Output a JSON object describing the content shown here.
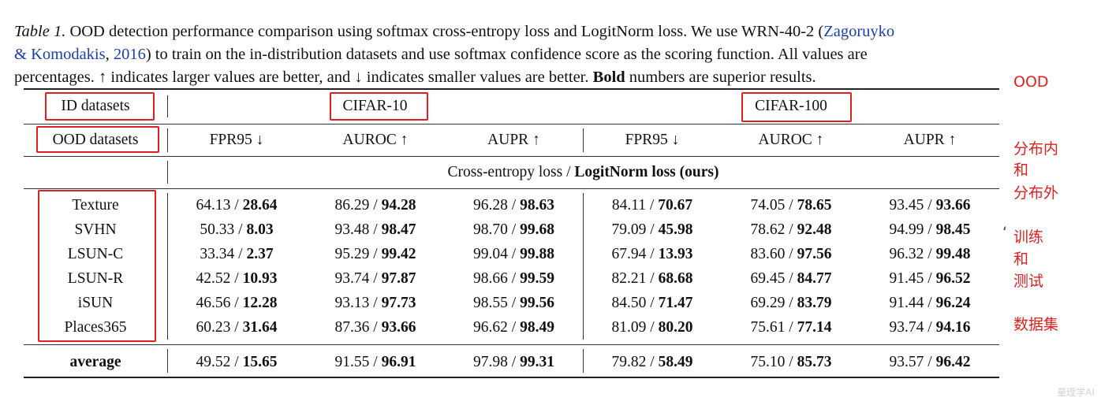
{
  "caption": {
    "label": "Table 1.",
    "line1_pre": " OOD detection performance comparison using softmax cross-entropy loss and LogitNorm loss. We use WRN-40-2 (",
    "ref_name": "Zagoruyko",
    "line2_ref": "& Komodakis",
    "line2_comma": ", ",
    "ref_year": "2016",
    "line2_post": ") to train on the in-distribution datasets and use softmax confidence score as the scoring function.  All values are",
    "line3_pre": "percentages. ↑ indicates larger values are better, and ↓ indicates smaller values are better. ",
    "line3_bold": "Bold",
    "line3_post": " numbers are superior results."
  },
  "table": {
    "id_header": "ID datasets",
    "ood_header": "OOD datasets",
    "groups": [
      "CIFAR-10",
      "CIFAR-100"
    ],
    "metrics": [
      "FPR95 ↓",
      "AUROC ↑",
      "AUPR ↑",
      "FPR95 ↓",
      "AUROC ↑",
      "AUPR ↑"
    ],
    "method_plain": "Cross-entropy loss / ",
    "method_bold": "LogitNorm loss (ours)",
    "rows": [
      {
        "name": "Texture",
        "cells": [
          [
            "64.13",
            "28.64"
          ],
          [
            "86.29",
            "94.28"
          ],
          [
            "96.28",
            "98.63"
          ],
          [
            "84.11",
            "70.67"
          ],
          [
            "74.05",
            "78.65"
          ],
          [
            "93.45",
            "93.66"
          ]
        ]
      },
      {
        "name": "SVHN",
        "cells": [
          [
            "50.33",
            "8.03"
          ],
          [
            "93.48",
            "98.47"
          ],
          [
            "98.70",
            "99.68"
          ],
          [
            "79.09",
            "45.98"
          ],
          [
            "78.62",
            "92.48"
          ],
          [
            "94.99",
            "98.45"
          ]
        ]
      },
      {
        "name": "LSUN-C",
        "cells": [
          [
            "33.34",
            "2.37"
          ],
          [
            "95.29",
            "99.42"
          ],
          [
            "99.04",
            "99.88"
          ],
          [
            "67.94",
            "13.93"
          ],
          [
            "83.60",
            "97.56"
          ],
          [
            "96.32",
            "99.48"
          ]
        ]
      },
      {
        "name": "LSUN-R",
        "cells": [
          [
            "42.52",
            "10.93"
          ],
          [
            "93.74",
            "97.87"
          ],
          [
            "98.66",
            "99.59"
          ],
          [
            "82.21",
            "68.68"
          ],
          [
            "69.45",
            "84.77"
          ],
          [
            "91.45",
            "96.52"
          ]
        ]
      },
      {
        "name": "iSUN",
        "cells": [
          [
            "46.56",
            "12.28"
          ],
          [
            "93.13",
            "97.73"
          ],
          [
            "98.55",
            "99.56"
          ],
          [
            "84.50",
            "71.47"
          ],
          [
            "69.29",
            "83.79"
          ],
          [
            "91.44",
            "96.24"
          ]
        ]
      },
      {
        "name": "Places365",
        "cells": [
          [
            "60.23",
            "31.64"
          ],
          [
            "87.36",
            "93.66"
          ],
          [
            "96.62",
            "98.49"
          ],
          [
            "81.09",
            "80.20"
          ],
          [
            "75.61",
            "77.14"
          ],
          [
            "93.74",
            "94.16"
          ]
        ]
      }
    ],
    "average": {
      "name": "average",
      "cells": [
        [
          "49.52",
          "15.65"
        ],
        [
          "91.55",
          "96.91"
        ],
        [
          "97.98",
          "99.31"
        ],
        [
          "79.82",
          "58.49"
        ],
        [
          "75.10",
          "85.73"
        ],
        [
          "93.57",
          "96.42"
        ]
      ]
    }
  },
  "annotations": {
    "ood": "OOD",
    "in_out": [
      "分布内",
      "和",
      "分布外"
    ],
    "stray_mark": "‘",
    "train_test": [
      "训练",
      "和",
      "测试",
      "",
      "数据集"
    ]
  },
  "watermark": "量理学AI"
}
